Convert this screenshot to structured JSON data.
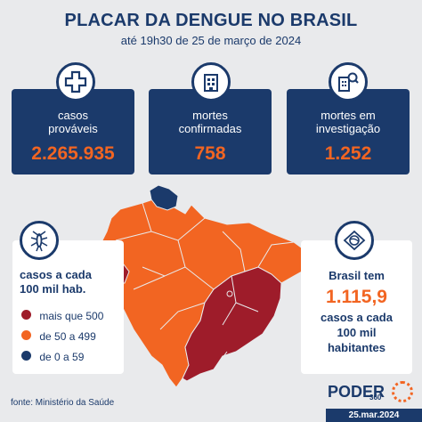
{
  "header": {
    "title": "PLACAR DA DENGUE NO BRASIL",
    "subtitle": "até 19h30 de 25 de março de 2024"
  },
  "cards": [
    {
      "label_line1": "casos",
      "label_line2": "prováveis",
      "value": "2.265.935",
      "icon": "medical-cross-icon"
    },
    {
      "label_line1": "mortes",
      "label_line2": "confirmadas",
      "value": "758",
      "icon": "hospital-building-icon"
    },
    {
      "label_line1": "mortes em",
      "label_line2": "investigação",
      "value": "1.252",
      "icon": "search-building-icon"
    }
  ],
  "legend": {
    "icon": "mosquito-icon",
    "heading_line1": "casos a cada",
    "heading_line2": "100 mil hab.",
    "items": [
      {
        "label": "mais que 500",
        "color": "#9e1c2a"
      },
      {
        "label": "de 50 a 499",
        "color": "#f26522"
      },
      {
        "label": "de 0 a 59",
        "color": "#1b3a6b"
      }
    ]
  },
  "national": {
    "icon": "brazil-flag-icon",
    "line1": "Brasil tem",
    "value": "1.115,9",
    "line2": "casos a cada",
    "line3": "100 mil",
    "line4": "habitantes"
  },
  "footer": {
    "source": "fonte: Ministério da Saúde",
    "logo_text": "PODER",
    "logo_sub": "360",
    "date": "25.mar.2024"
  },
  "colors": {
    "navy": "#1b3a6b",
    "orange": "#f26522",
    "darkred": "#9e1c2a"
  }
}
